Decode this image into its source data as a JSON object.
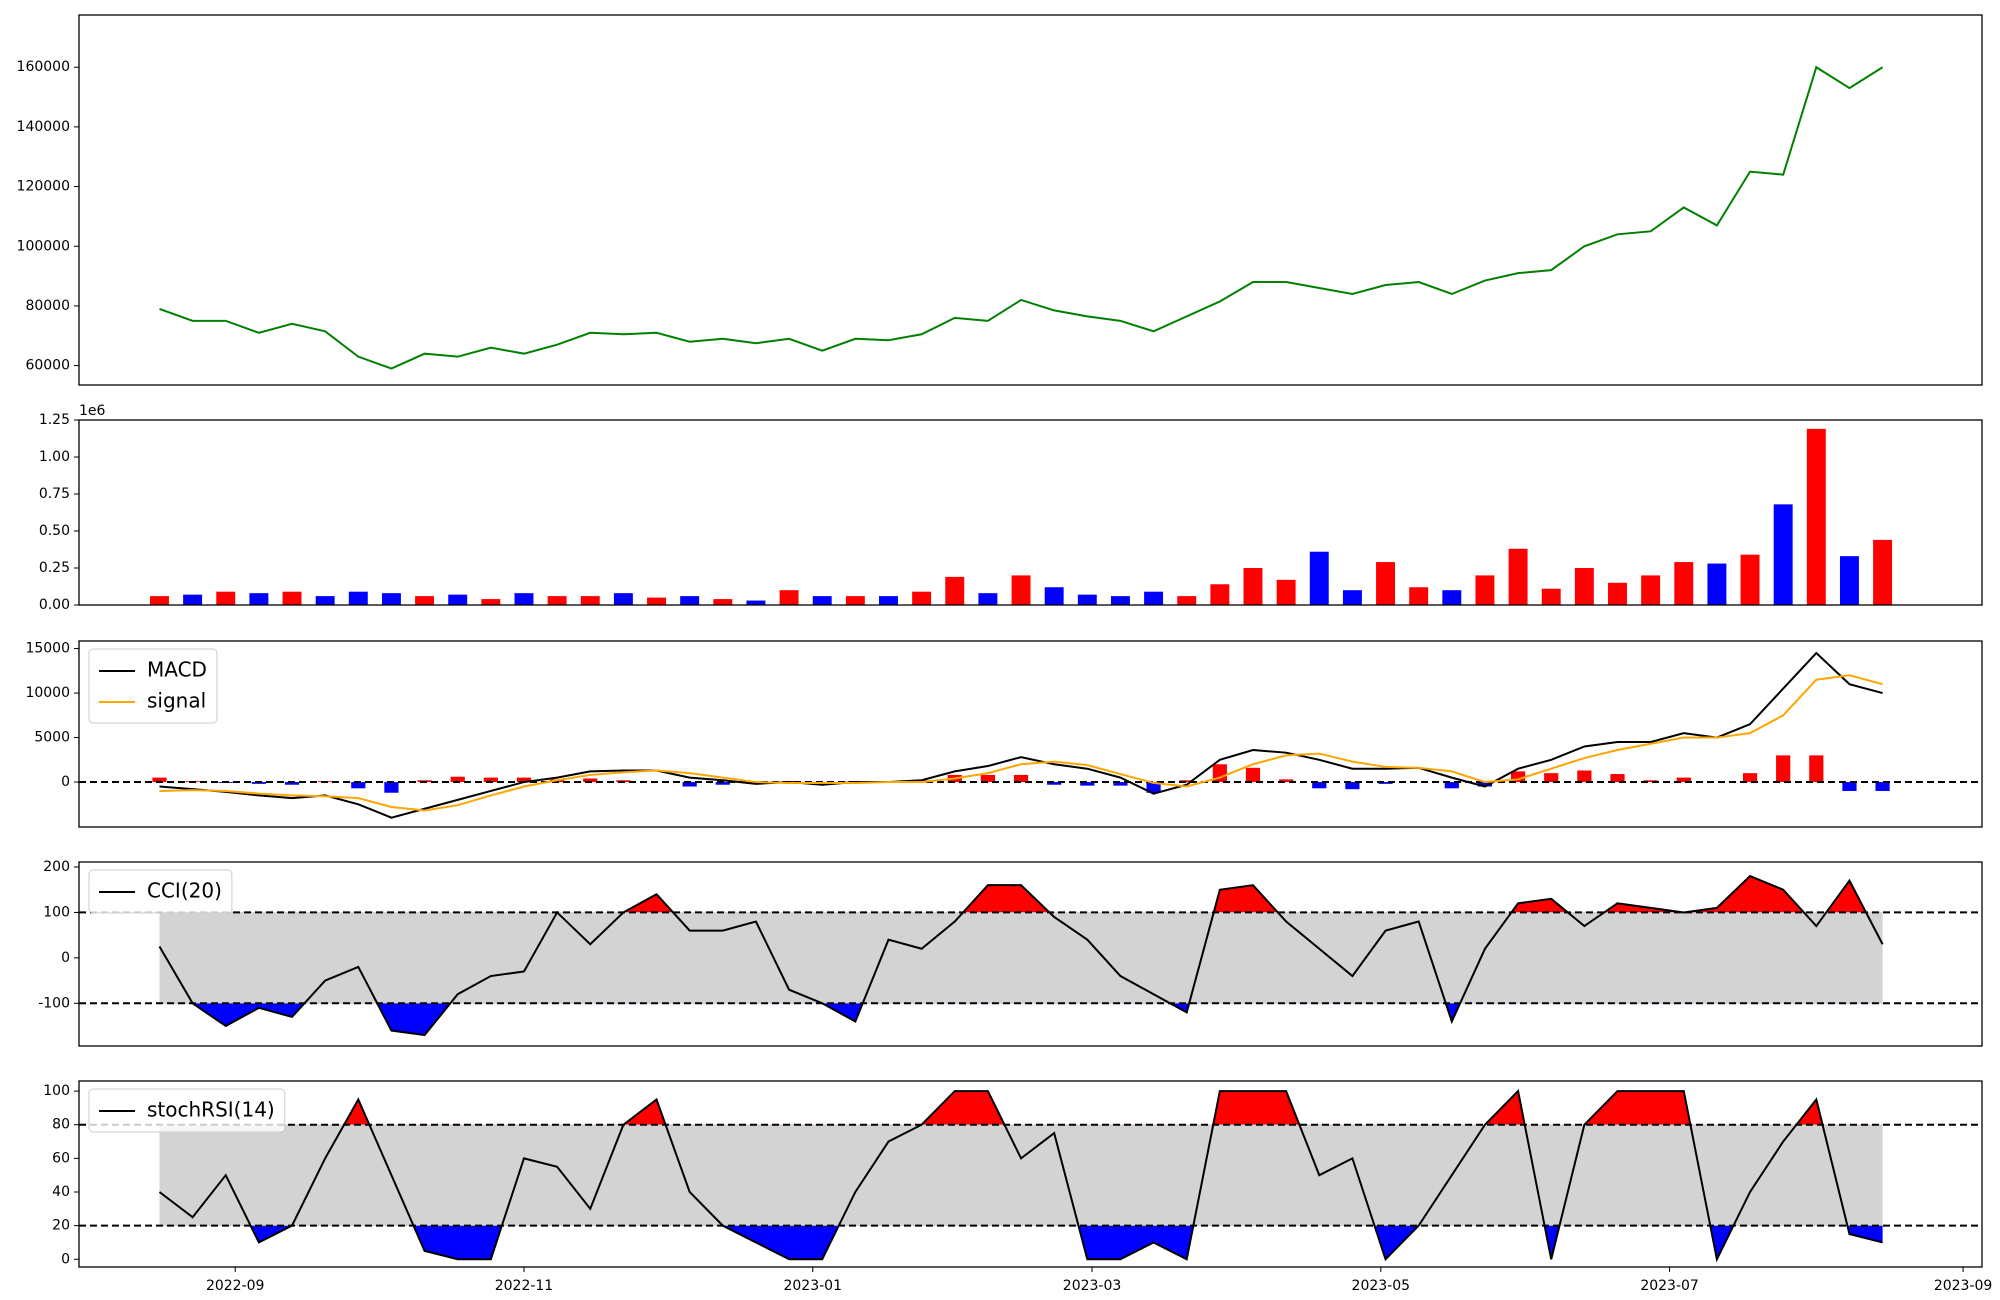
{
  "chart_data": [
    {
      "type": "line",
      "x": [
        "2022-08-16",
        "2022-08-23",
        "2022-08-30",
        "2022-09-06",
        "2022-09-13",
        "2022-09-20",
        "2022-09-27",
        "2022-10-04",
        "2022-10-11",
        "2022-10-18",
        "2022-10-25",
        "2022-11-01",
        "2022-11-08",
        "2022-11-15",
        "2022-11-22",
        "2022-11-29",
        "2022-12-06",
        "2022-12-13",
        "2022-12-20",
        "2022-12-27",
        "2023-01-03",
        "2023-01-10",
        "2023-01-17",
        "2023-01-24",
        "2023-01-31",
        "2023-02-07",
        "2023-02-14",
        "2023-02-21",
        "2023-02-28",
        "2023-03-07",
        "2023-03-14",
        "2023-03-21",
        "2023-03-28",
        "2023-04-04",
        "2023-04-11",
        "2023-04-18",
        "2023-04-25",
        "2023-05-02",
        "2023-05-09",
        "2023-05-16",
        "2023-05-23",
        "2023-05-30",
        "2023-06-06",
        "2023-06-13",
        "2023-06-20",
        "2023-06-27",
        "2023-07-04",
        "2023-07-11",
        "2023-07-18",
        "2023-07-25",
        "2023-08-01",
        "2023-08-08",
        "2023-08-15"
      ],
      "values": [
        79000,
        75000,
        75000,
        71000,
        74000,
        71500,
        63000,
        59000,
        64000,
        63000,
        66000,
        64000,
        67000,
        71000,
        70500,
        71000,
        68000,
        69000,
        67500,
        69000,
        65000,
        69000,
        68500,
        70500,
        76000,
        75000,
        82000,
        78500,
        76500,
        75000,
        71500,
        76500,
        81500,
        88000,
        88000,
        86000,
        84000,
        87000,
        88000,
        84000,
        88500,
        91000,
        92000,
        100000,
        104000,
        105000,
        113000,
        107000,
        125000,
        124000,
        160000,
        153000,
        160000
      ],
      "color": "green",
      "xlim": [
        "2022-07-30",
        "2023-09-05"
      ],
      "ylim": [
        53500,
        177500
      ],
      "yticks": [
        60000,
        80000,
        100000,
        120000,
        140000,
        160000
      ]
    },
    {
      "type": "bar",
      "x": [
        "2022-08-16",
        "2022-08-23",
        "2022-08-30",
        "2022-09-06",
        "2022-09-13",
        "2022-09-20",
        "2022-09-27",
        "2022-10-04",
        "2022-10-11",
        "2022-10-18",
        "2022-10-25",
        "2022-11-01",
        "2022-11-08",
        "2022-11-15",
        "2022-11-22",
        "2022-11-29",
        "2022-12-06",
        "2022-12-13",
        "2022-12-20",
        "2022-12-27",
        "2023-01-03",
        "2023-01-10",
        "2023-01-17",
        "2023-01-24",
        "2023-01-31",
        "2023-02-07",
        "2023-02-14",
        "2023-02-21",
        "2023-02-28",
        "2023-03-07",
        "2023-03-14",
        "2023-03-21",
        "2023-03-28",
        "2023-04-04",
        "2023-04-11",
        "2023-04-18",
        "2023-04-25",
        "2023-05-02",
        "2023-05-09",
        "2023-05-16",
        "2023-05-23",
        "2023-05-30",
        "2023-06-06",
        "2023-06-13",
        "2023-06-20",
        "2023-06-27",
        "2023-07-04",
        "2023-07-11",
        "2023-07-18",
        "2023-07-25",
        "2023-08-01",
        "2023-08-08",
        "2023-08-15"
      ],
      "values": [
        60000,
        70000,
        90000,
        80000,
        90000,
        60000,
        90000,
        80000,
        60000,
        70000,
        40000,
        80000,
        60000,
        60000,
        80000,
        50000,
        60000,
        40000,
        30000,
        100000,
        60000,
        60000,
        60000,
        90000,
        190000,
        80000,
        200000,
        120000,
        70000,
        60000,
        90000,
        60000,
        140000,
        250000,
        170000,
        360000,
        100000,
        290000,
        120000,
        100000,
        200000,
        380000,
        110000,
        250000,
        150000,
        200000,
        290000,
        280000,
        340000,
        680000,
        1190000,
        330000,
        440000
      ],
      "colors": [
        "red",
        "blue",
        "red",
        "blue",
        "red",
        "blue",
        "blue",
        "blue",
        "red",
        "blue",
        "red",
        "blue",
        "red",
        "red",
        "blue",
        "red",
        "blue",
        "red",
        "blue",
        "red",
        "blue",
        "red",
        "blue",
        "red",
        "red",
        "blue",
        "red",
        "blue",
        "blue",
        "blue",
        "blue",
        "red",
        "red",
        "red",
        "red",
        "blue",
        "blue",
        "red",
        "red",
        "blue",
        "red",
        "red",
        "red",
        "red",
        "red",
        "red",
        "red",
        "blue",
        "red",
        "blue",
        "red",
        "blue",
        "red"
      ],
      "xlim": [
        "2022-07-30",
        "2023-09-05"
      ],
      "ylim": [
        0,
        1250000
      ],
      "yticks": [
        {
          "value": 0,
          "label": "0.00"
        },
        {
          "value": 250000,
          "label": "0.25"
        },
        {
          "value": 500000,
          "label": "0.50"
        },
        {
          "value": 750000,
          "label": "0.75"
        },
        {
          "value": 1000000,
          "label": "1.00"
        },
        {
          "value": 1250000,
          "label": "1.25"
        }
      ],
      "offset_label": "1e6"
    },
    {
      "type": "line",
      "x": [
        "2022-08-16",
        "2022-08-23",
        "2022-08-30",
        "2022-09-06",
        "2022-09-13",
        "2022-09-20",
        "2022-09-27",
        "2022-10-04",
        "2022-10-11",
        "2022-10-18",
        "2022-10-25",
        "2022-11-01",
        "2022-11-08",
        "2022-11-15",
        "2022-11-22",
        "2022-11-29",
        "2022-12-06",
        "2022-12-13",
        "2022-12-20",
        "2022-12-27",
        "2023-01-03",
        "2023-01-10",
        "2023-01-17",
        "2023-01-24",
        "2023-01-31",
        "2023-02-07",
        "2023-02-14",
        "2023-02-21",
        "2023-02-28",
        "2023-03-07",
        "2023-03-14",
        "2023-03-21",
        "2023-03-28",
        "2023-04-04",
        "2023-04-11",
        "2023-04-18",
        "2023-04-25",
        "2023-05-02",
        "2023-05-09",
        "2023-05-16",
        "2023-05-23",
        "2023-05-30",
        "2023-06-06",
        "2023-06-13",
        "2023-06-20",
        "2023-06-27",
        "2023-07-04",
        "2023-07-11",
        "2023-07-18",
        "2023-07-25",
        "2023-08-01",
        "2023-08-08",
        "2023-08-15"
      ],
      "series": [
        {
          "name": "MACD",
          "color": "black",
          "values": [
            -500,
            -800,
            -1100,
            -1500,
            -1800,
            -1500,
            -2500,
            -4000,
            -3000,
            -2000,
            -1000,
            0,
            500,
            1200,
            1300,
            1300,
            500,
            200,
            -200,
            0,
            -300,
            0,
            0,
            200,
            1200,
            1800,
            2800,
            2000,
            1500,
            500,
            -1300,
            -300,
            2500,
            3600,
            3300,
            2500,
            1500,
            1500,
            1600,
            500,
            -500,
            1500,
            2500,
            4000,
            4500,
            4500,
            5500,
            5000,
            6500,
            10500,
            14500,
            11000,
            10000
          ]
        },
        {
          "name": "signal",
          "color": "orange",
          "values": [
            -1000,
            -900,
            -1000,
            -1300,
            -1500,
            -1600,
            -1800,
            -2800,
            -3200,
            -2600,
            -1500,
            -500,
            200,
            800,
            1100,
            1300,
            1000,
            500,
            0,
            -100,
            -100,
            -100,
            0,
            0,
            400,
            1000,
            2000,
            2300,
            1900,
            900,
            -100,
            -500,
            500,
            2000,
            3000,
            3200,
            2300,
            1700,
            1600,
            1200,
            0,
            300,
            1500,
            2700,
            3600,
            4300,
            5000,
            5000,
            5500,
            7500,
            11500,
            12000,
            11000
          ]
        }
      ],
      "histogram": {
        "values": [
          500,
          100,
          -100,
          -200,
          -300,
          100,
          -700,
          -1200,
          200,
          600,
          500,
          500,
          300,
          400,
          200,
          0,
          -500,
          -300,
          -200,
          100,
          -200,
          100,
          0,
          200,
          800,
          800,
          800,
          -300,
          -400,
          -400,
          -1200,
          200,
          2000,
          1600,
          300,
          -700,
          -800,
          -200,
          0,
          -700,
          -500,
          1200,
          1000,
          1300,
          900,
          200,
          500,
          0,
          1000,
          3000,
          3000,
          -1000,
          -1000
        ],
        "positive_color": "red",
        "negative_color": "blue"
      },
      "hlines": [
        0
      ],
      "legend": "upper left",
      "xlim": [
        "2022-07-30",
        "2023-09-05"
      ],
      "ylim": [
        -5050,
        15850
      ],
      "yticks": [
        0,
        5000,
        10000,
        15000
      ]
    },
    {
      "type": "line",
      "x": [
        "2022-08-16",
        "2022-08-23",
        "2022-08-30",
        "2022-09-06",
        "2022-09-13",
        "2022-09-20",
        "2022-09-27",
        "2022-10-04",
        "2022-10-11",
        "2022-10-18",
        "2022-10-25",
        "2022-11-01",
        "2022-11-08",
        "2022-11-15",
        "2022-11-22",
        "2022-11-29",
        "2022-12-06",
        "2022-12-13",
        "2022-12-20",
        "2022-12-27",
        "2023-01-03",
        "2023-01-10",
        "2023-01-17",
        "2023-01-24",
        "2023-01-31",
        "2023-02-07",
        "2023-02-14",
        "2023-02-21",
        "2023-02-28",
        "2023-03-07",
        "2023-03-14",
        "2023-03-21",
        "2023-03-28",
        "2023-04-04",
        "2023-04-11",
        "2023-04-18",
        "2023-04-25",
        "2023-05-02",
        "2023-05-09",
        "2023-05-16",
        "2023-05-23",
        "2023-05-30",
        "2023-06-06",
        "2023-06-13",
        "2023-06-20",
        "2023-06-27",
        "2023-07-04",
        "2023-07-11",
        "2023-07-18",
        "2023-07-25",
        "2023-08-01",
        "2023-08-08",
        "2023-08-15"
      ],
      "series": [
        {
          "name": "CCI(20)",
          "color": "black",
          "values": [
            25,
            -100,
            -150,
            -110,
            -130,
            -50,
            -20,
            -160,
            -170,
            -80,
            -40,
            -30,
            100,
            30,
            100,
            140,
            60,
            60,
            80,
            -70,
            -100,
            -140,
            40,
            20,
            80,
            160,
            160,
            90,
            40,
            -40,
            -80,
            -120,
            150,
            160,
            80,
            20,
            -40,
            60,
            80,
            -140,
            20,
            120,
            130,
            70,
            120,
            110,
            100,
            110,
            180,
            150,
            70,
            170,
            30
          ]
        }
      ],
      "hlines": [
        -100,
        100
      ],
      "fill_colors": {
        "band": "lightgray",
        "above": "red",
        "below": "blue"
      },
      "legend": "upper left",
      "xlim": [
        "2022-07-30",
        "2023-09-05"
      ],
      "ylim": [
        -194,
        211
      ],
      "yticks": [
        -100,
        0,
        100,
        200
      ]
    },
    {
      "type": "line",
      "x": [
        "2022-08-16",
        "2022-08-23",
        "2022-08-30",
        "2022-09-06",
        "2022-09-13",
        "2022-09-20",
        "2022-09-27",
        "2022-10-04",
        "2022-10-11",
        "2022-10-18",
        "2022-10-25",
        "2022-11-01",
        "2022-11-08",
        "2022-11-15",
        "2022-11-22",
        "2022-11-29",
        "2022-12-06",
        "2022-12-13",
        "2022-12-20",
        "2022-12-27",
        "2023-01-03",
        "2023-01-10",
        "2023-01-17",
        "2023-01-24",
        "2023-01-31",
        "2023-02-07",
        "2023-02-14",
        "2023-02-21",
        "2023-02-28",
        "2023-03-07",
        "2023-03-14",
        "2023-03-21",
        "2023-03-28",
        "2023-04-04",
        "2023-04-11",
        "2023-04-18",
        "2023-04-25",
        "2023-05-02",
        "2023-05-09",
        "2023-05-16",
        "2023-05-23",
        "2023-05-30",
        "2023-06-06",
        "2023-06-13",
        "2023-06-20",
        "2023-06-27",
        "2023-07-04",
        "2023-07-11",
        "2023-07-18",
        "2023-07-25",
        "2023-08-01",
        "2023-08-08",
        "2023-08-15"
      ],
      "series": [
        {
          "name": "stochRSI(14)",
          "color": "black",
          "values": [
            40,
            25,
            50,
            10,
            20,
            60,
            95,
            50,
            5,
            0,
            0,
            60,
            55,
            30,
            80,
            95,
            40,
            20,
            10,
            0,
            0,
            40,
            70,
            80,
            100,
            100,
            60,
            75,
            0,
            0,
            10,
            0,
            100,
            100,
            100,
            50,
            60,
            0,
            20,
            50,
            80,
            100,
            0,
            80,
            100,
            100,
            100,
            0,
            40,
            70,
            95,
            15,
            10
          ]
        }
      ],
      "hlines": [
        20,
        80
      ],
      "fill_colors": {
        "band": "lightgray",
        "above": "red",
        "below": "blue"
      },
      "legend": "upper left",
      "xlim": [
        "2022-07-30",
        "2023-09-05"
      ],
      "ylim": [
        -4.6,
        106
      ],
      "yticks": [
        0,
        20,
        40,
        60,
        80,
        100
      ],
      "xticks": [
        "2022-09",
        "2022-11",
        "2023-01",
        "2023-03",
        "2023-05",
        "2023-07",
        "2023-09"
      ]
    }
  ]
}
